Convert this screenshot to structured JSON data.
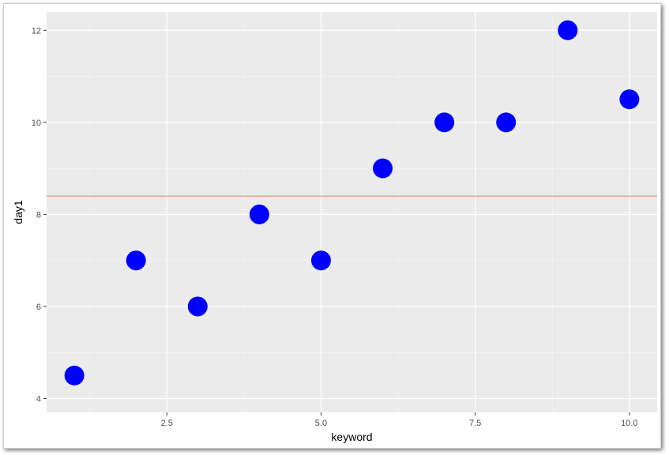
{
  "chart_data": {
    "type": "scatter",
    "title": "",
    "xlabel": "keyword",
    "ylabel": "day1",
    "xlim": [
      0.55,
      10.45
    ],
    "ylim": [
      3.7,
      12.4
    ],
    "x_ticks": [
      2.5,
      5.0,
      7.5,
      10.0
    ],
    "x_tick_labels": [
      "2.5",
      "5.0",
      "7.5",
      "10.0"
    ],
    "y_ticks": [
      4,
      6,
      8,
      10,
      12
    ],
    "y_tick_labels": [
      "4",
      "6",
      "8",
      "10",
      "12"
    ],
    "grid": true,
    "points": [
      {
        "x": 1,
        "y": 4.5
      },
      {
        "x": 2,
        "y": 7
      },
      {
        "x": 3,
        "y": 6
      },
      {
        "x": 4,
        "y": 8
      },
      {
        "x": 5,
        "y": 7
      },
      {
        "x": 6,
        "y": 9
      },
      {
        "x": 7,
        "y": 10
      },
      {
        "x": 8,
        "y": 10
      },
      {
        "x": 9,
        "y": 12
      },
      {
        "x": 10,
        "y": 10.5
      }
    ],
    "hline": {
      "y": 8.4,
      "color": "#f8766d"
    },
    "colors": {
      "point": "#0000ff",
      "panel": "#ebebeb",
      "grid_major": "#ffffff",
      "grid_minor": "#f5f5f5"
    }
  }
}
